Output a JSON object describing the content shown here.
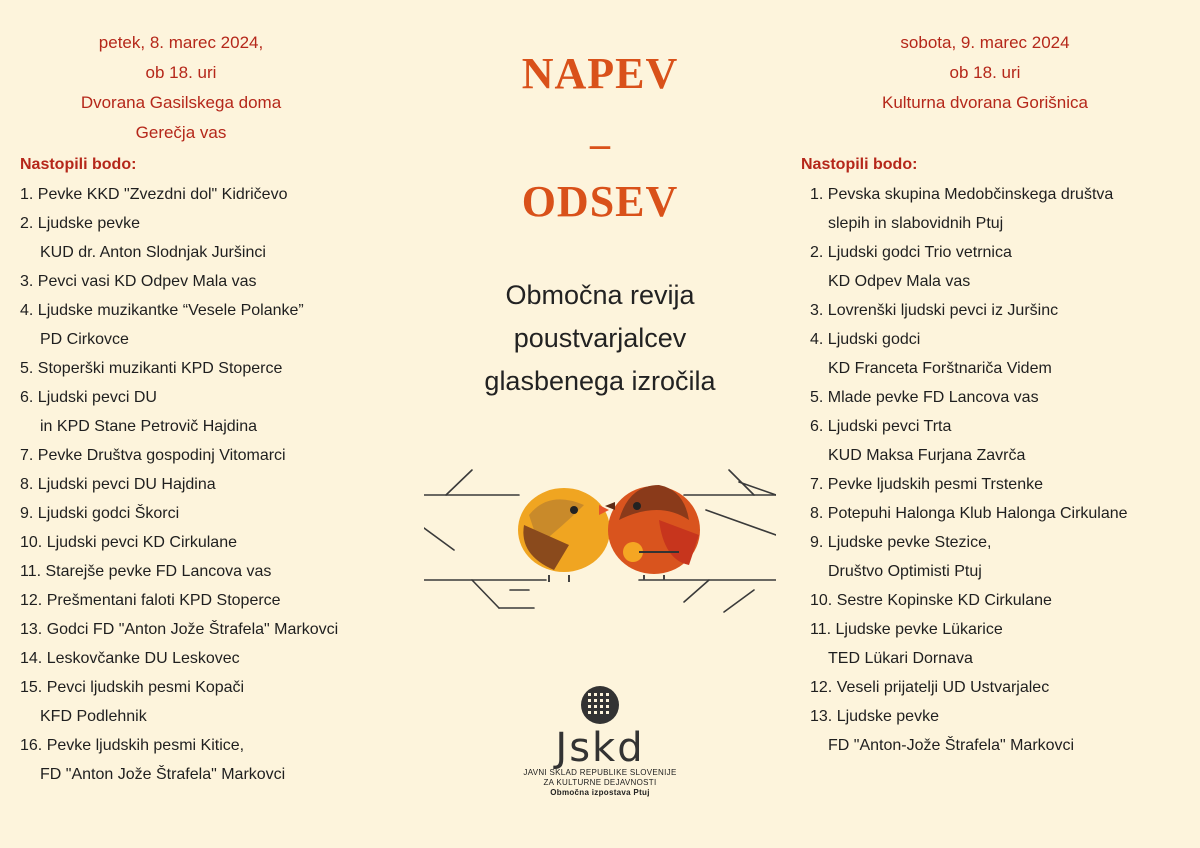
{
  "left": {
    "date": "petek, 8. marec 2024,",
    "time": "ob 18. uri",
    "venue1": "Dvorana Gasilskega doma",
    "venue2": "Gerečja vas",
    "lead": "Nastopili bodo:",
    "items": [
      {
        "l1": "1.  Pevke KKD \"Zvezdni dol\" Kidričevo",
        "l2": ""
      },
      {
        "l1": "2.  Ljudske pevke",
        "l2": "KUD dr. Anton Slodnjak Juršinci"
      },
      {
        "l1": "3. Pevci vasi KD Odpev Mala vas",
        "l2": ""
      },
      {
        "l1": "4. Ljudske muzikantke “Vesele Polanke”",
        "l2": "PD Cirkovce"
      },
      {
        "l1": "5. Stoperški muzikanti KPD Stoperce",
        "l2": ""
      },
      {
        "l1": "6. Ljudski pevci DU",
        "l2": "in KPD Stane Petrovič Hajdina"
      },
      {
        "l1": "7. Pevke Društva gospodinj Vitomarci",
        "l2": ""
      },
      {
        "l1": "8. Ljudski pevci DU Hajdina",
        "l2": ""
      },
      {
        "l1": "9. Ljudski godci Škorci",
        "l2": ""
      },
      {
        "l1": "10. Ljudski pevci KD Cirkulane",
        "l2": ""
      },
      {
        "l1": "11. Starejše pevke FD Lancova vas",
        "l2": ""
      },
      {
        "l1": "12. Prešmentani faloti KPD Stoperce",
        "l2": ""
      },
      {
        "l1": "13. Godci FD \"Anton Jože Štrafela\" Markovci",
        "l2": ""
      },
      {
        "l1": "14. Leskovčanke DU Leskovec",
        "l2": ""
      },
      {
        "l1": "15. Pevci ljudskih pesmi Kopači",
        "l2": "KFD Podlehnik"
      },
      {
        "l1": "16. Pevke ljudskih pesmi Kitice,",
        "l2": "FD \"Anton Jože Štrafela\" Markovci"
      }
    ]
  },
  "center": {
    "title1": "NAPEV",
    "dash": "–",
    "title2": "ODSEV",
    "subtitle1": "Območna revija",
    "subtitle2": "poustvarjalcev",
    "subtitle3": "glasbenega izročila",
    "logo_word": "Jskd",
    "logo_line1": "JAVNI SKLAD REPUBLIKE SLOVENIJE",
    "logo_line2": "ZA KULTURNE DEJAVNOSTI",
    "logo_line3": "Območna izpostava Ptuj"
  },
  "right": {
    "date": "sobota, 9. marec 2024",
    "time": "ob 18. uri",
    "venue1": "Kulturna dvorana Gorišnica",
    "lead": "Nastopili bodo:",
    "items": [
      {
        "l1": "1. Pevska skupina Medobčinskega društva",
        "l2": "slepih in slabovidnih Ptuj"
      },
      {
        "l1": "2. Ljudski godci Trio vetrnica",
        "l2": " KD Odpev Mala vas"
      },
      {
        "l1": "3. Lovrenški ljudski pevci iz Juršinc",
        "l2": ""
      },
      {
        "l1": "4. Ljudski godci",
        "l2": "KD Franceta Forštnariča Videm"
      },
      {
        "l1": "5. Mlade pevke FD Lancova vas",
        "l2": ""
      },
      {
        "l1": "6. Ljudski pevci Trta",
        "l2": "KUD Maksa Furjana Zavrča"
      },
      {
        "l1": "7. Pevke ljudskih pesmi Trstenke",
        "l2": ""
      },
      {
        "l1": "8. Potepuhi Halonga Klub Halonga Cirkulane",
        "l2": ""
      },
      {
        "l1": "9. Ljudske pevke Stezice,",
        "l2": "Društvo Optimisti Ptuj"
      },
      {
        "l1": "10. Sestre Kopinske KD Cirkulane",
        "l2": ""
      },
      {
        "l1": "11. Ljudske pevke Lükarice",
        "l2": " TED Lükari Dornava"
      },
      {
        "l1": "12. Veseli prijatelji UD Ustvarjalec",
        "l2": ""
      },
      {
        "l1": "13. Ljudske pevke",
        "l2": " FD \"Anton-Jože Štrafela\" Markovci"
      }
    ]
  },
  "colors": {
    "background": "#fdf4dc",
    "accent_red": "#b5271a",
    "title_orange": "#d9511a"
  },
  "icons": [
    "two-birds-illustration",
    "jskd-logo"
  ]
}
